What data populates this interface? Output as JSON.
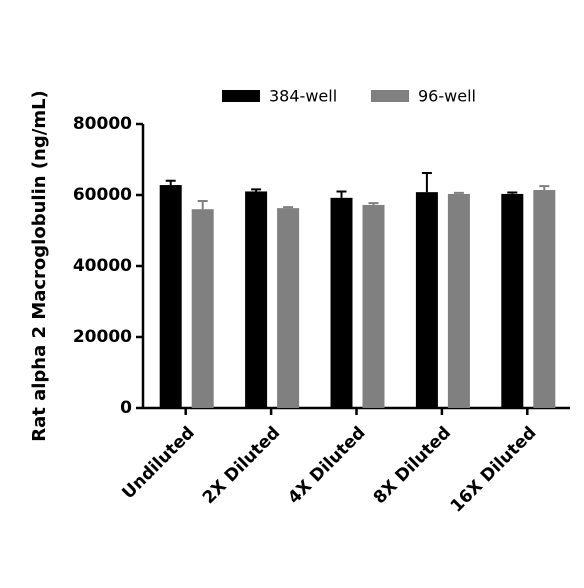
{
  "chart_data": {
    "type": "bar",
    "y_label": "Rat alpha 2 Macroglobulin (ng/mL)",
    "categories": [
      "Undiluted",
      "2X Diluted",
      "4X Diluted",
      "8X Diluted",
      "16X Diluted"
    ],
    "series": [
      {
        "name": "384-well",
        "color": "#000000",
        "values": [
          62800,
          61000,
          59200,
          60800,
          60300
        ],
        "errors": [
          1200,
          600,
          1800,
          5400,
          400
        ]
      },
      {
        "name": "96-well",
        "color": "#808080",
        "values": [
          56000,
          56300,
          57200,
          60300,
          61400
        ],
        "errors": [
          2300,
          300,
          500,
          300,
          1100
        ]
      }
    ],
    "ylim": [
      0,
      80000
    ],
    "yticks": [
      0,
      20000,
      40000,
      60000,
      80000
    ],
    "legend": "top"
  }
}
